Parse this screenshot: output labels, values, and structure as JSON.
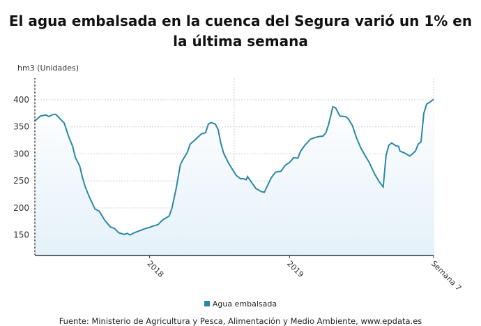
{
  "title": "El agua embalsada en la cuenca del Segura varió un 1% en la última semana",
  "source": "Fuente: Ministerio de Agricultura y Pesca, Alimentación y Medio Ambiente, www.epdata.es",
  "colors": {
    "line": "#2a86a8",
    "fill_top": "#ffffff",
    "fill_bottom": "#e4f1f9",
    "grid": "#cfcfcf",
    "axis": "#333333"
  },
  "chart_data": {
    "type": "area",
    "title": "El agua embalsada en la cuenca del Segura varió un 1% en la última semana",
    "ylabel": "hm3 (Unidades)",
    "xlabel": "",
    "ylim": [
      112,
      440
    ],
    "xlim": [
      2017.18,
      2020.03
    ],
    "yticks": [
      150,
      200,
      250,
      300,
      350,
      400
    ],
    "xticks": [
      {
        "x": 2018,
        "label": "2018"
      },
      {
        "x": 2019,
        "label": "2019"
      },
      {
        "x": 2020.03,
        "label": "Semana 7"
      }
    ],
    "grid": true,
    "legend": "bottom",
    "series": [
      {
        "name": "Agua embalsada",
        "points": [
          [
            2017.18,
            361
          ],
          [
            2017.22,
            370
          ],
          [
            2017.26,
            372
          ],
          [
            2017.28,
            369
          ],
          [
            2017.31,
            373
          ],
          [
            2017.33,
            373
          ],
          [
            2017.36,
            365
          ],
          [
            2017.39,
            357
          ],
          [
            2017.42,
            333
          ],
          [
            2017.45,
            314
          ],
          [
            2017.47,
            293
          ],
          [
            2017.5,
            278
          ],
          [
            2017.52,
            257
          ],
          [
            2017.54,
            239
          ],
          [
            2017.57,
            220
          ],
          [
            2017.61,
            198
          ],
          [
            2017.64,
            194
          ],
          [
            2017.68,
            177
          ],
          [
            2017.72,
            165
          ],
          [
            2017.75,
            162
          ],
          [
            2017.78,
            154
          ],
          [
            2017.82,
            151
          ],
          [
            2017.84,
            153
          ],
          [
            2017.86,
            150
          ],
          [
            2017.89,
            154
          ],
          [
            2017.93,
            158
          ],
          [
            2017.97,
            162
          ],
          [
            2018.0,
            164
          ],
          [
            2018.03,
            167
          ],
          [
            2018.06,
            169
          ],
          [
            2018.09,
            177
          ],
          [
            2018.12,
            182
          ],
          [
            2018.14,
            185
          ],
          [
            2018.16,
            200
          ],
          [
            2018.19,
            236
          ],
          [
            2018.22,
            280
          ],
          [
            2018.24,
            290
          ],
          [
            2018.27,
            303
          ],
          [
            2018.29,
            318
          ],
          [
            2018.33,
            327
          ],
          [
            2018.37,
            337
          ],
          [
            2018.4,
            339
          ],
          [
            2018.42,
            355
          ],
          [
            2018.44,
            358
          ],
          [
            2018.47,
            355
          ],
          [
            2018.49,
            345
          ],
          [
            2018.51,
            319
          ],
          [
            2018.53,
            301
          ],
          [
            2018.56,
            285
          ],
          [
            2018.59,
            272
          ],
          [
            2018.62,
            260
          ],
          [
            2018.65,
            254
          ],
          [
            2018.67,
            254
          ],
          [
            2018.69,
            252
          ],
          [
            2018.7,
            258
          ],
          [
            2018.73,
            247
          ],
          [
            2018.76,
            236
          ],
          [
            2018.8,
            230
          ],
          [
            2018.82,
            229
          ],
          [
            2018.84,
            240
          ],
          [
            2018.87,
            256
          ],
          [
            2018.9,
            266
          ],
          [
            2018.94,
            268
          ],
          [
            2018.97,
            279
          ],
          [
            2019.0,
            284
          ],
          [
            2019.03,
            293
          ],
          [
            2019.06,
            292
          ],
          [
            2019.08,
            305
          ],
          [
            2019.11,
            316
          ],
          [
            2019.15,
            327
          ],
          [
            2019.18,
            330
          ],
          [
            2019.21,
            332
          ],
          [
            2019.24,
            333
          ],
          [
            2019.26,
            339
          ],
          [
            2019.28,
            355
          ],
          [
            2019.31,
            387
          ],
          [
            2019.33,
            385
          ],
          [
            2019.36,
            370
          ],
          [
            2019.4,
            369
          ],
          [
            2019.42,
            365
          ],
          [
            2019.45,
            352
          ],
          [
            2019.48,
            329
          ],
          [
            2019.51,
            311
          ],
          [
            2019.54,
            297
          ],
          [
            2019.57,
            284
          ],
          [
            2019.61,
            262
          ],
          [
            2019.64,
            249
          ],
          [
            2019.67,
            239
          ],
          [
            2019.69,
            297
          ],
          [
            2019.71,
            316
          ],
          [
            2019.73,
            320
          ],
          [
            2019.76,
            315
          ],
          [
            2019.78,
            314
          ],
          [
            2019.79,
            305
          ],
          [
            2019.82,
            302
          ],
          [
            2019.86,
            296
          ],
          [
            2019.9,
            305
          ],
          [
            2019.92,
            318
          ],
          [
            2019.94,
            322
          ],
          [
            2019.96,
            375
          ],
          [
            2019.98,
            392
          ],
          [
            2020.01,
            397
          ],
          [
            2020.03,
            401
          ]
        ]
      }
    ]
  }
}
